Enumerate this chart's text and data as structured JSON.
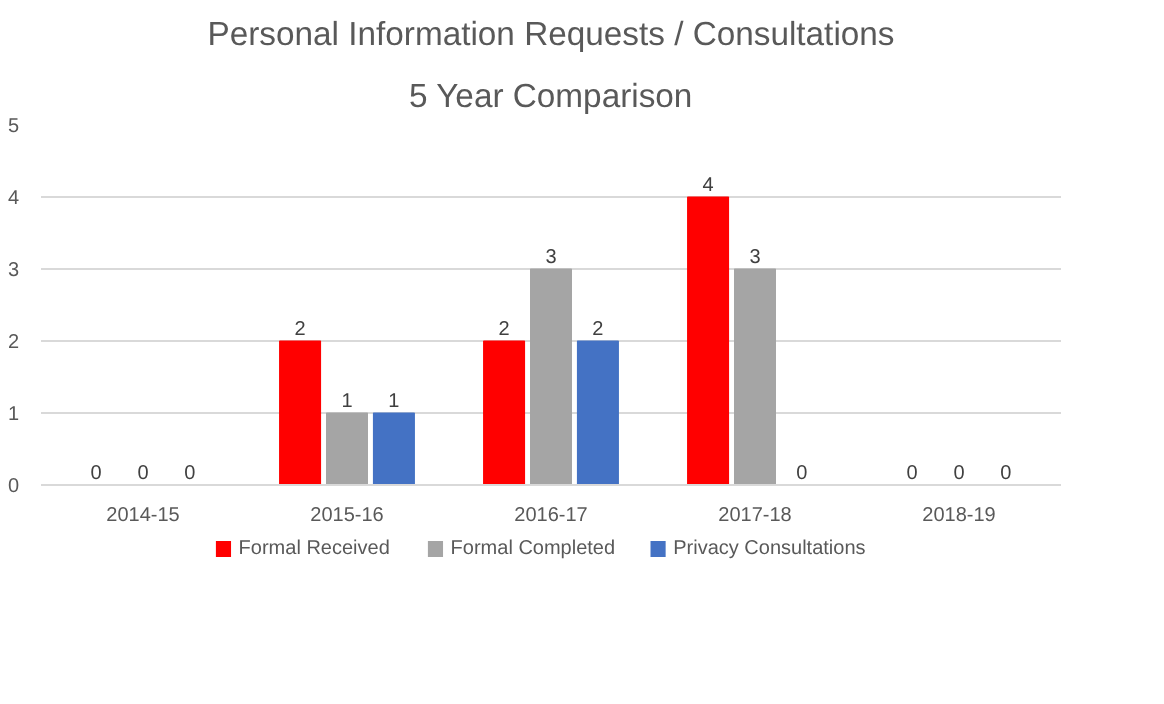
{
  "chart_data": {
    "type": "bar",
    "title": "Personal Information Requests / Consultations",
    "subtitle": "5 Year Comparison",
    "categories": [
      "2014-15",
      "2015-16",
      "2016-17",
      "2017-18",
      "2018-19"
    ],
    "series": [
      {
        "name": "Formal Received",
        "color": "#ff0000",
        "values": [
          0,
          2,
          2,
          4,
          0
        ]
      },
      {
        "name": "Formal Completed",
        "color": "#a5a5a5",
        "values": [
          0,
          1,
          3,
          3,
          0
        ]
      },
      {
        "name": "Privacy Consultations",
        "color": "#4472c4",
        "values": [
          0,
          1,
          2,
          0,
          0
        ]
      }
    ],
    "ylim": [
      0,
      5
    ],
    "yticks": [
      0,
      1,
      2,
      3,
      4,
      5
    ],
    "grid": "y",
    "legend": "bottom",
    "data_labels": true
  }
}
